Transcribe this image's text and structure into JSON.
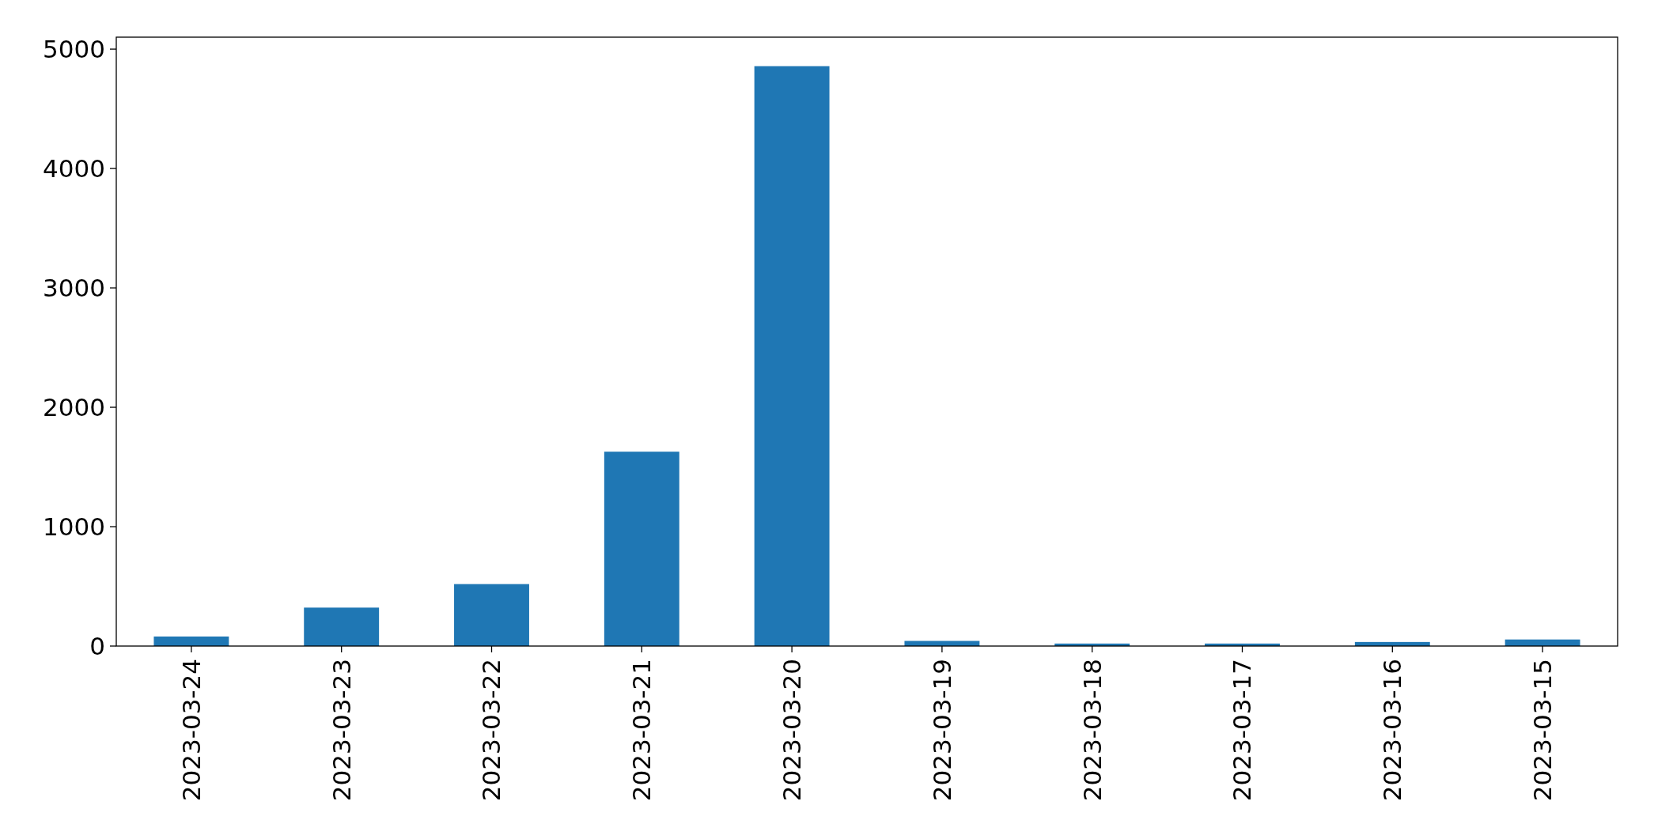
{
  "chart_data": {
    "type": "bar",
    "categories": [
      "2023-03-24",
      "2023-03-23",
      "2023-03-22",
      "2023-03-21",
      "2023-03-20",
      "2023-03-19",
      "2023-03-18",
      "2023-03-17",
      "2023-03-16",
      "2023-03-15"
    ],
    "values": [
      80,
      322,
      519,
      1628,
      4857,
      43,
      21,
      21,
      34,
      55
    ],
    "color": "#1f77b4",
    "ylim": [
      0,
      5100
    ],
    "yticks": [
      0,
      1000,
      2000,
      3000,
      4000,
      5000
    ],
    "grid": false
  }
}
